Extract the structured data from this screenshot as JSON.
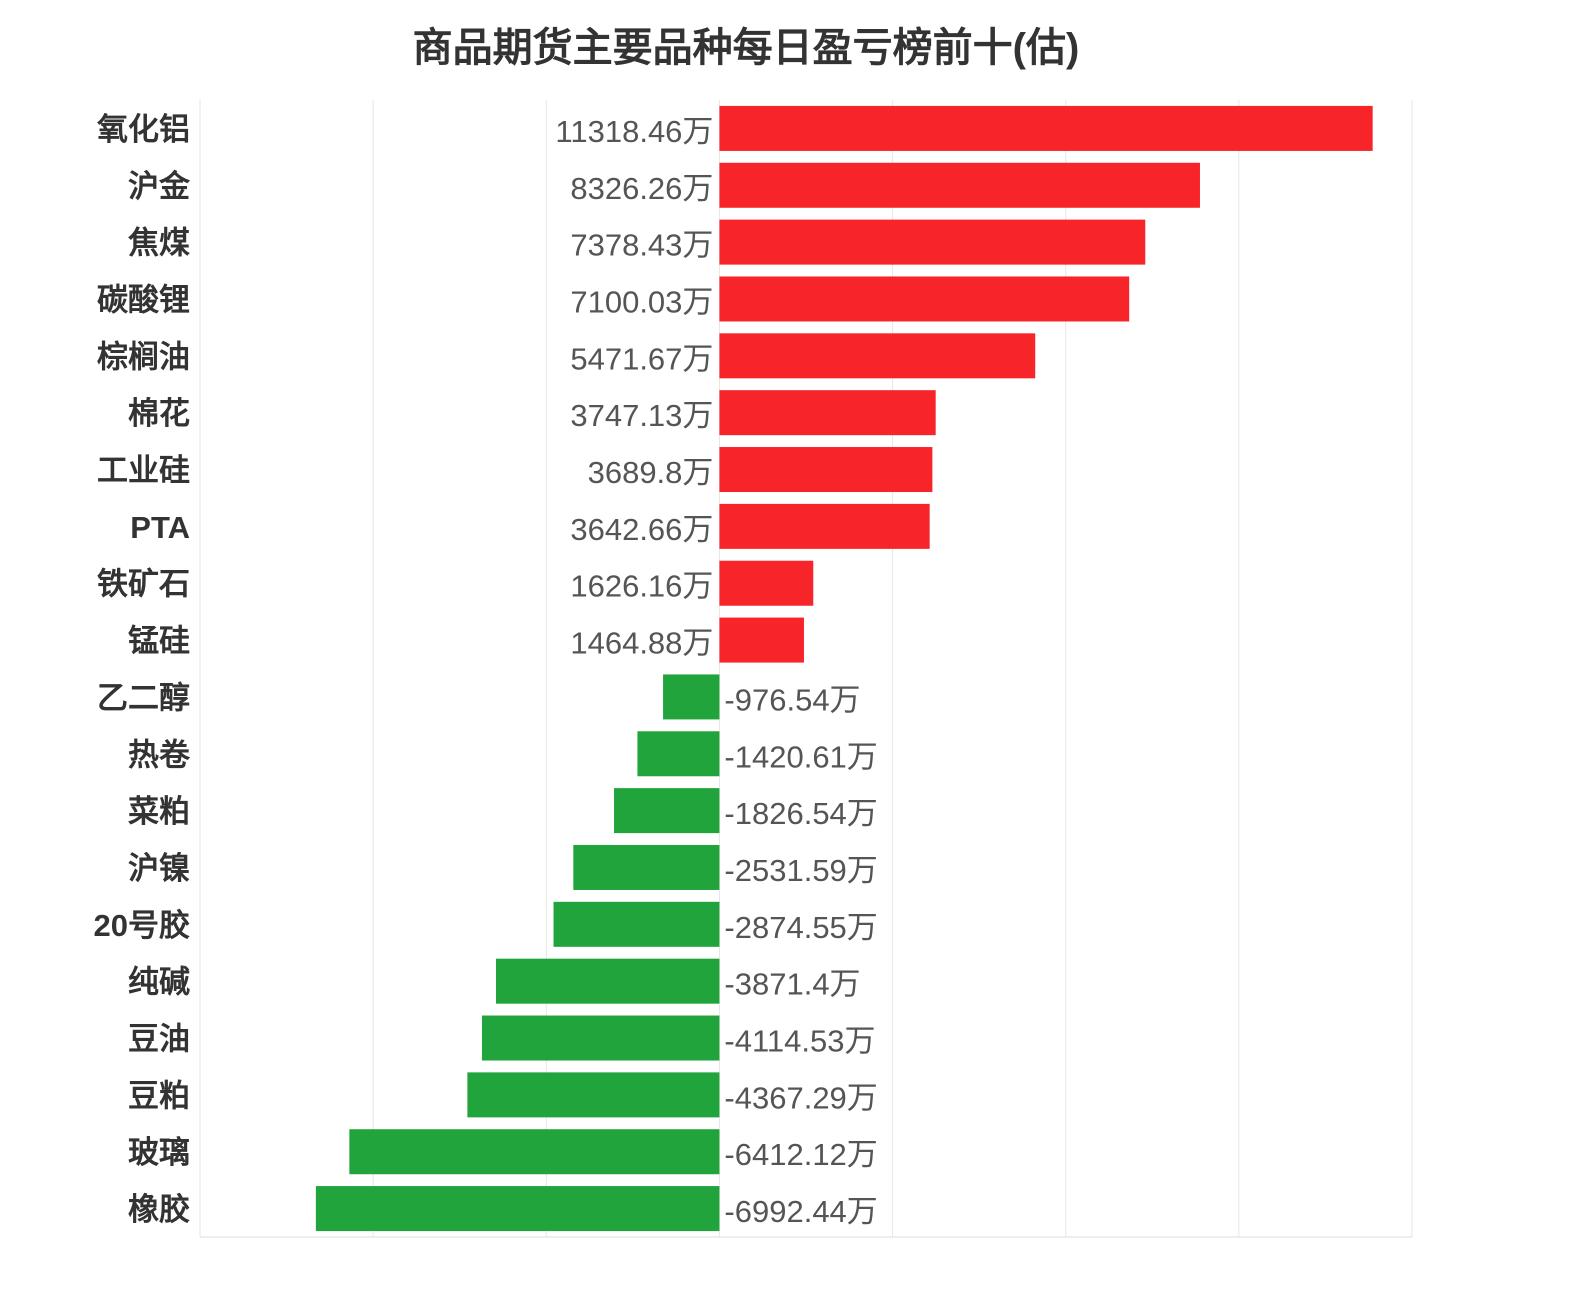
{
  "chart_data": {
    "type": "bar",
    "orientation": "horizontal",
    "title": "商品期货主要品种每日盈亏榜前十(估)",
    "xlabel": "",
    "ylabel": "",
    "categories": [
      "氧化铝",
      "沪金",
      "焦煤",
      "碳酸锂",
      "棕榈油",
      "棉花",
      "工业硅",
      "PTA",
      "铁矿石",
      "锰硅",
      "乙二醇",
      "热卷",
      "菜粕",
      "沪镍",
      "20号胶",
      "纯碱",
      "豆油",
      "豆粕",
      "玻璃",
      "橡胶"
    ],
    "values": [
      11318.46,
      8326.26,
      7378.43,
      7100.03,
      5471.67,
      3747.13,
      3689.8,
      3642.66,
      1626.16,
      1464.88,
      -976.54,
      -1420.61,
      -1826.54,
      -2531.59,
      -2874.55,
      -3871.4,
      -4114.53,
      -4367.29,
      -6412.12,
      -6992.44
    ],
    "value_suffix": "万",
    "xlim": [
      -9000,
      12000
    ],
    "grid": true,
    "xgrid_step": 3000,
    "legend": "none",
    "colors": {
      "positive": "#f72529",
      "negative": "#21a43b"
    }
  }
}
